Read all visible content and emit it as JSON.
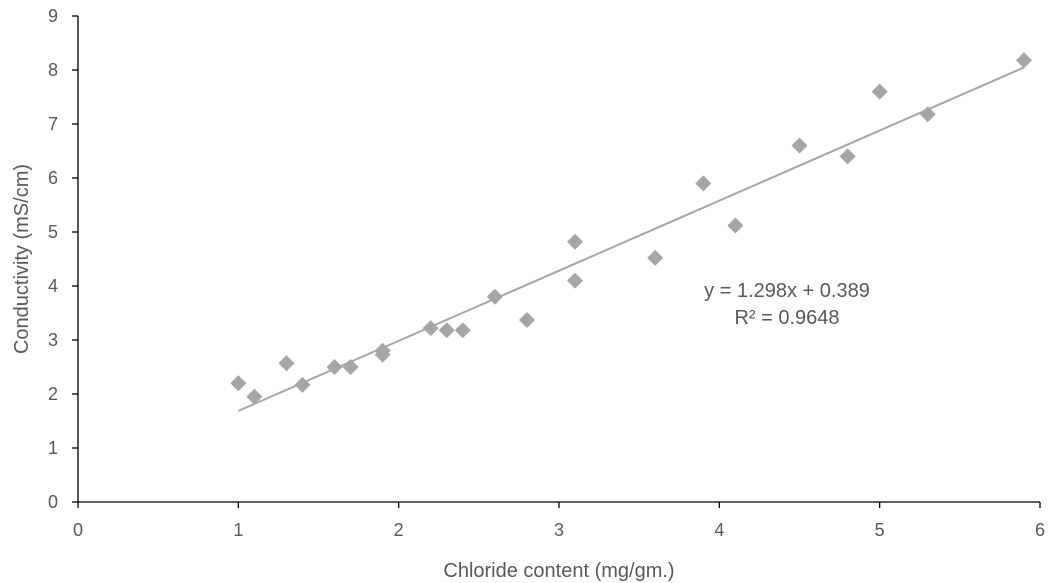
{
  "chart_data": {
    "type": "scatter",
    "xlabel": "Chloride content (mg/gm.)",
    "ylabel": "Conductivity (mS/cm)",
    "xlim": [
      0,
      6
    ],
    "ylim": [
      0,
      9
    ],
    "x_ticks": [
      0,
      1,
      2,
      3,
      4,
      5,
      6
    ],
    "y_ticks": [
      0,
      1,
      2,
      3,
      4,
      5,
      6,
      7,
      8,
      9
    ],
    "grid": false,
    "legend": "none",
    "series": [
      {
        "marker": "diamond",
        "color": "#a6a6a6",
        "points": [
          {
            "x": 1.0,
            "y": 2.2
          },
          {
            "x": 1.1,
            "y": 1.95
          },
          {
            "x": 1.3,
            "y": 2.57
          },
          {
            "x": 1.4,
            "y": 2.17
          },
          {
            "x": 1.6,
            "y": 2.5
          },
          {
            "x": 1.7,
            "y": 2.5
          },
          {
            "x": 1.9,
            "y": 2.8
          },
          {
            "x": 1.9,
            "y": 2.73
          },
          {
            "x": 2.2,
            "y": 3.22
          },
          {
            "x": 2.3,
            "y": 3.18
          },
          {
            "x": 2.4,
            "y": 3.18
          },
          {
            "x": 2.6,
            "y": 3.8
          },
          {
            "x": 2.8,
            "y": 3.37
          },
          {
            "x": 3.1,
            "y": 4.82
          },
          {
            "x": 3.1,
            "y": 4.1
          },
          {
            "x": 3.6,
            "y": 4.52
          },
          {
            "x": 3.9,
            "y": 5.9
          },
          {
            "x": 4.1,
            "y": 5.12
          },
          {
            "x": 4.5,
            "y": 6.6
          },
          {
            "x": 4.8,
            "y": 6.4
          },
          {
            "x": 5.0,
            "y": 7.6
          },
          {
            "x": 5.3,
            "y": 7.18
          },
          {
            "x": 5.9,
            "y": 8.18
          }
        ]
      }
    ],
    "trendline": {
      "type": "linear",
      "slope": 1.298,
      "intercept": 0.389,
      "x_range": [
        1.0,
        5.9
      ],
      "color": "#a6a6a6",
      "equation_label": "y = 1.298x + 0.389",
      "r2_label": "R² = 0.9648"
    }
  },
  "colors": {
    "axis": "#000000",
    "marker": "#a6a6a6",
    "trendline": "#a6a6a6",
    "text": "#595959"
  }
}
